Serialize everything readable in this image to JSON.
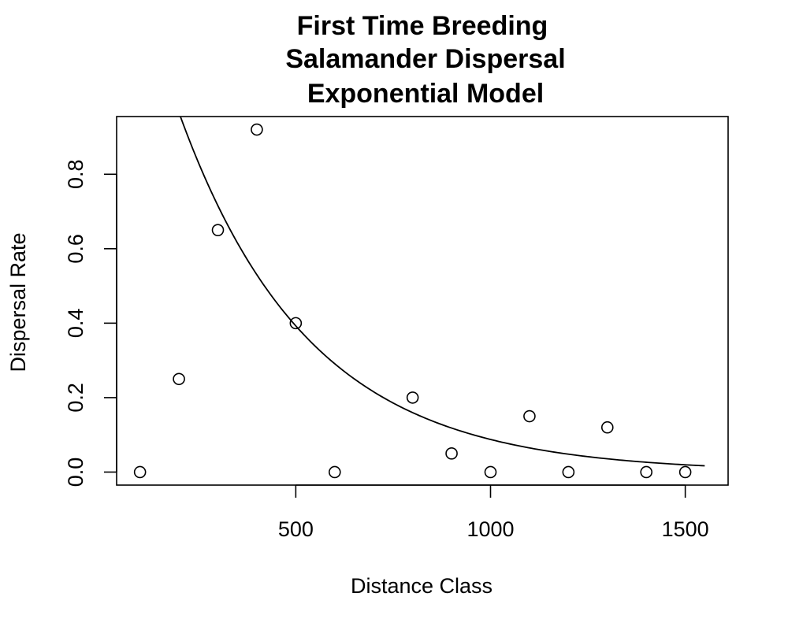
{
  "chart_data": {
    "type": "scatter",
    "title_lines": [
      "First Time Breeding",
      "Salamander Dispersal",
      "Exponential Model"
    ],
    "xlabel": "Distance Class",
    "ylabel": "Dispersal Rate",
    "xlim": [
      40,
      1610
    ],
    "ylim": [
      -0.035,
      0.955
    ],
    "x_ticks": [
      500,
      1000,
      1500
    ],
    "x_tick_labels": [
      "500",
      "1000",
      "1500"
    ],
    "y_ticks": [
      0.0,
      0.2,
      0.4,
      0.6,
      0.8
    ],
    "y_tick_labels": [
      "0.0",
      "0.2",
      "0.4",
      "0.6",
      "0.8"
    ],
    "grid": false,
    "points": {
      "x": [
        100,
        200,
        300,
        400,
        500,
        600,
        800,
        900,
        1000,
        1100,
        1200,
        1300,
        1400,
        1500
      ],
      "y": [
        0.0,
        0.25,
        0.65,
        0.92,
        0.4,
        0.0,
        0.2,
        0.05,
        0.0,
        0.15,
        0.0,
        0.12,
        0.0,
        0.0
      ]
    },
    "fit_curve": {
      "model": "exponential",
      "a": 1.76,
      "b": 0.003,
      "x_range": [
        190,
        1550
      ]
    },
    "colors": {
      "points": "#000000",
      "curve": "#000000",
      "frame": "#000000"
    }
  }
}
